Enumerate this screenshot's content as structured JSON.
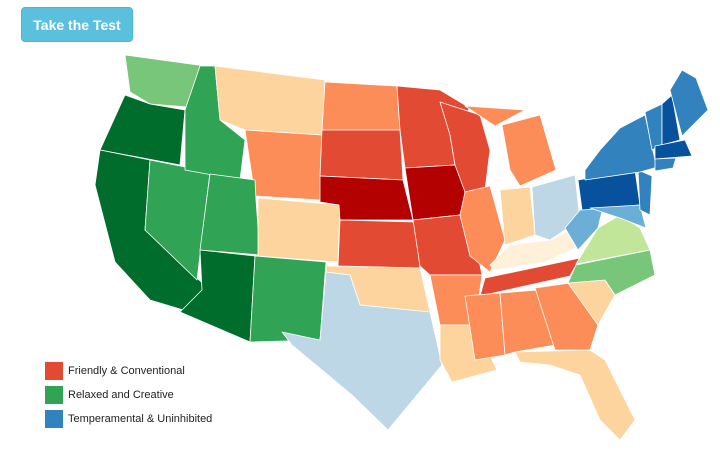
{
  "button": {
    "label": "Take the Test"
  },
  "legend": {
    "items": [
      {
        "label": "Friendly & Conventional",
        "color": "#e34a33"
      },
      {
        "label": "Relaxed and Creative",
        "color": "#31a354"
      },
      {
        "label": "Temperamental & Uninhibited",
        "color": "#3182bd"
      }
    ]
  }
}
